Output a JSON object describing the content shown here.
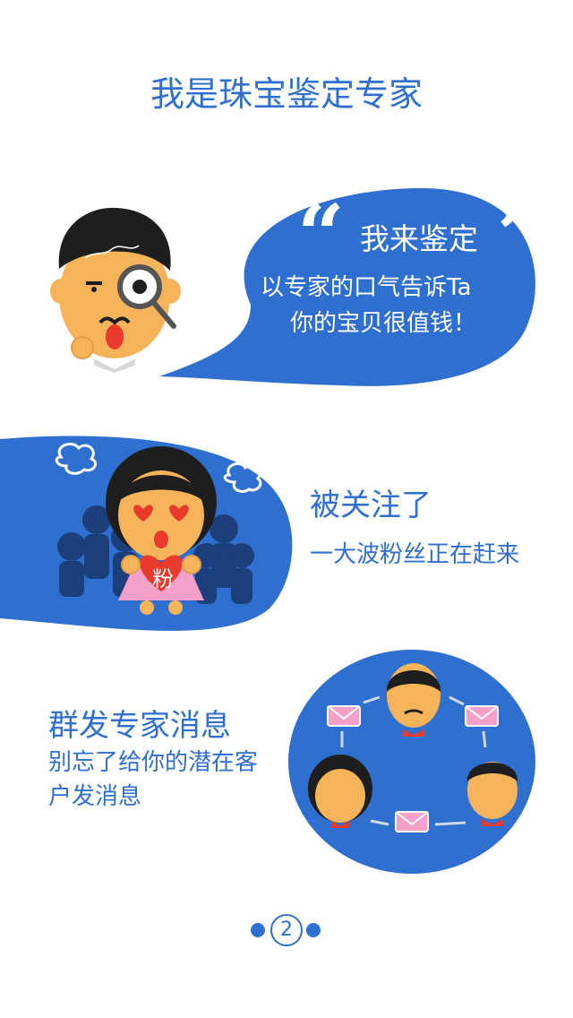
{
  "header": {
    "title": "我是珠宝鉴定专家"
  },
  "section1": {
    "bubble_title": "我来鉴定",
    "bubble_line1": "以专家的口气告诉Ta",
    "bubble_line2": "你的宝贝很值钱！",
    "open_quote": "“",
    "close_quote": "”"
  },
  "section2": {
    "title": "被关注了",
    "subtitle": "一大波粉丝正在赶来",
    "heart_label": "粉"
  },
  "section3": {
    "title": "群发专家消息",
    "subtitle_line1": "别忘了给你的潜在客",
    "subtitle_line2": "户发消息"
  },
  "pager": {
    "current": "2",
    "total_dots": 3
  },
  "colors": {
    "brand_blue": "#2f6fcf",
    "skin": "#f5b35a",
    "hair": "#1e1e1e",
    "pink": "#f4a0c8",
    "red": "#e83a2a"
  },
  "icons": [
    "magnifier-icon",
    "cloud-icon",
    "envelope-icon",
    "arrow-icon",
    "heart-icon"
  ]
}
